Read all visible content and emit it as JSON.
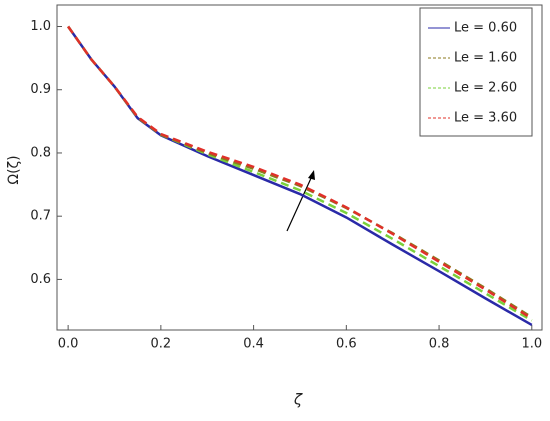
{
  "chart_data": {
    "type": "line",
    "xlabel": "ζ",
    "ylabel": "Ω(ζ)",
    "x": [
      0,
      0.05,
      0.1,
      0.15,
      0.2,
      0.3,
      0.4,
      0.5,
      0.6,
      0.7,
      0.8,
      0.9,
      1.0
    ],
    "series": [
      {
        "name": "Le = 0.60",
        "color": "#2a2aa8",
        "dash": "",
        "values": [
          1.0,
          0.948,
          0.905,
          0.855,
          0.828,
          0.795,
          0.765,
          0.735,
          0.698,
          0.655,
          0.613,
          0.57,
          0.528
        ]
      },
      {
        "name": "Le = 1.60",
        "color": "#8b7a1c",
        "dash": "8 5",
        "values": [
          1.0,
          0.948,
          0.905,
          0.856,
          0.829,
          0.8,
          0.775,
          0.748,
          0.713,
          0.673,
          0.63,
          0.586,
          0.54
        ]
      },
      {
        "name": "Le = 2.60",
        "color": "#7ad13a",
        "dash": "8 5",
        "values": [
          1.0,
          0.948,
          0.905,
          0.856,
          0.829,
          0.798,
          0.77,
          0.741,
          0.705,
          0.664,
          0.621,
          0.578,
          0.535
        ]
      },
      {
        "name": "Le = 3.60",
        "color": "#e0302a",
        "dash": "8 5",
        "values": [
          1.0,
          0.948,
          0.905,
          0.857,
          0.83,
          0.802,
          0.778,
          0.75,
          0.714,
          0.672,
          0.628,
          0.584,
          0.538
        ]
      }
    ],
    "xlim": [
      -0.024,
      1.022
    ],
    "ylim": [
      0.52,
      1.034
    ],
    "xticks": [
      {
        "value": 0,
        "label": "0.0"
      },
      0.2,
      0.4,
      0.6,
      0.8,
      {
        "value": 1,
        "label": "1.0"
      }
    ],
    "yticks": [
      0.6,
      0.7,
      0.8,
      0.9,
      {
        "value": 1,
        "label": "1.0"
      }
    ],
    "legend": "top-right"
  }
}
